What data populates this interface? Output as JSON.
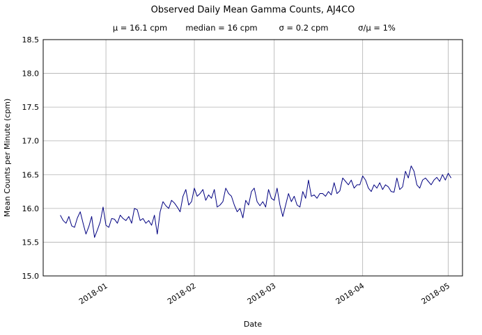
{
  "chart_data": {
    "type": "line",
    "title": "Observed Daily Mean Gamma Counts, AJ4CO",
    "subtitle_parts": [
      "μ = 16.1 cpm",
      "median = 16 cpm",
      "σ = 0.2 cpm",
      "σ/μ = 1%"
    ],
    "xlabel": "Date",
    "ylabel": "Mean Counts per Minute (cpm)",
    "ylim": [
      15.0,
      18.5
    ],
    "ytick_step": 0.5,
    "ytick_labels": [
      "15.0",
      "15.5",
      "16.0",
      "16.5",
      "17.0",
      "17.5",
      "18.0",
      "18.5"
    ],
    "xtick_labels": [
      "2018-01",
      "2018-02",
      "2018-03",
      "2018-04",
      "2018-05"
    ],
    "xtick_dates": [
      "2018-01-01",
      "2018-02-01",
      "2018-03-01",
      "2018-04-01",
      "2018-05-01"
    ],
    "x_axis_range": [
      "2017-12-10",
      "2018-05-06"
    ],
    "x_start_date": "2017-12-16",
    "x_interval_days": 1,
    "grid": true,
    "legend": "none",
    "line_color": "#000080",
    "grid_color": "#b0b0b0",
    "values": [
      15.9,
      15.82,
      15.78,
      15.88,
      15.74,
      15.72,
      15.86,
      15.95,
      15.78,
      15.62,
      15.73,
      15.88,
      15.57,
      15.68,
      15.8,
      16.02,
      15.75,
      15.72,
      15.85,
      15.84,
      15.78,
      15.9,
      15.85,
      15.82,
      15.88,
      15.78,
      16.0,
      15.98,
      15.82,
      15.85,
      15.78,
      15.82,
      15.75,
      15.9,
      15.62,
      15.95,
      16.1,
      16.04,
      16.0,
      16.12,
      16.08,
      16.02,
      15.95,
      16.18,
      16.28,
      16.05,
      16.1,
      16.3,
      16.18,
      16.22,
      16.28,
      16.12,
      16.2,
      16.15,
      16.28,
      16.02,
      16.05,
      16.1,
      16.3,
      16.22,
      16.18,
      16.05,
      15.95,
      16.0,
      15.86,
      16.12,
      16.05,
      16.25,
      16.3,
      16.1,
      16.04,
      16.1,
      16.02,
      16.28,
      16.15,
      16.12,
      16.3,
      16.05,
      15.88,
      16.05,
      16.22,
      16.1,
      16.18,
      16.05,
      16.02,
      16.25,
      16.15,
      16.42,
      16.18,
      16.2,
      16.15,
      16.22,
      16.22,
      16.18,
      16.25,
      16.2,
      16.38,
      16.22,
      16.26,
      16.45,
      16.4,
      16.35,
      16.42,
      16.3,
      16.35,
      16.35,
      16.48,
      16.42,
      16.3,
      16.25,
      16.35,
      16.3,
      16.38,
      16.28,
      16.35,
      16.32,
      16.25,
      16.24,
      16.45,
      16.28,
      16.32,
      16.55,
      16.45,
      16.63,
      16.55,
      16.35,
      16.3,
      16.42,
      16.45,
      16.4,
      16.35,
      16.42,
      16.46,
      16.4,
      16.5,
      16.42,
      16.52,
      16.45
    ]
  }
}
